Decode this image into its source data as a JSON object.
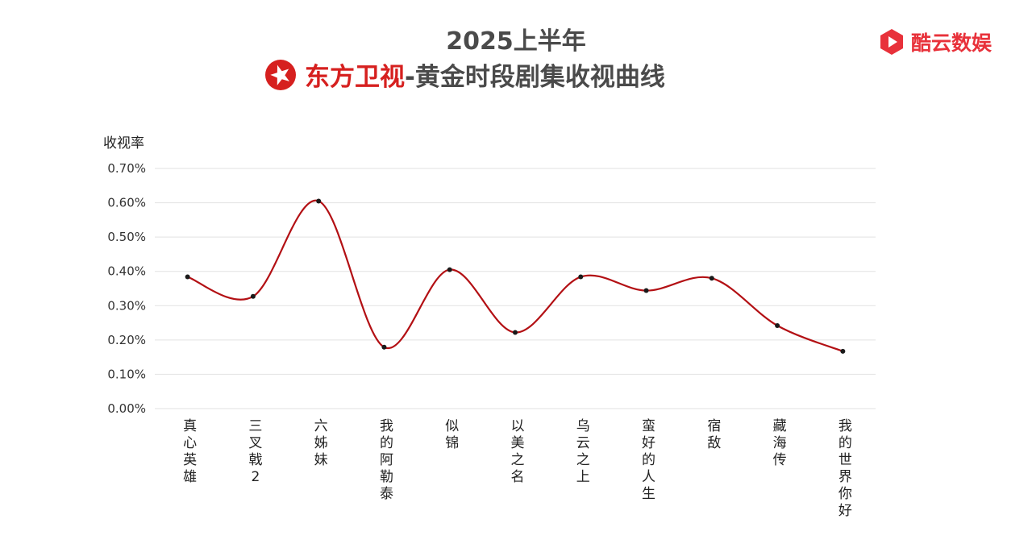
{
  "header": {
    "title_line1": "2025上半年",
    "channel_name": "东方卫视",
    "title_rest": "-黄金时段剧集收视曲线",
    "brand_name": "酷云数娱"
  },
  "colors": {
    "line": "#b31014",
    "marker": "#1a1a1a",
    "grid": "#e2e2e2",
    "channel_red": "#d6201f",
    "brand_red": "#e8313a",
    "title_gray": "#4a4a4a"
  },
  "icons": {
    "channel_logo": "dragon-tv-logo-icon",
    "brand_logo": "play-hexagon-icon"
  },
  "chart_data": {
    "type": "line",
    "title": "2025上半年 东方卫视-黄金时段剧集收视曲线",
    "xlabel": "",
    "ylabel": "收视率",
    "ylim": [
      0,
      0.7
    ],
    "yticks": [
      0,
      0.1,
      0.2,
      0.3,
      0.4,
      0.5,
      0.6,
      0.7
    ],
    "ytick_labels": [
      "0.00%",
      "0.10%",
      "0.20%",
      "0.30%",
      "0.40%",
      "0.50%",
      "0.60%",
      "0.70%"
    ],
    "grid": true,
    "smooth": true,
    "categories": [
      "真心英雄",
      "三叉戟2",
      "六姊妹",
      "我的阿勒泰",
      "似锦",
      "以美之名",
      "乌云之上",
      "蛮好的人生",
      "宿敌",
      "藏海传",
      "我的世界你好"
    ],
    "series": [
      {
        "values": [
          0.384,
          0.327,
          0.605,
          0.179,
          0.405,
          0.222,
          0.384,
          0.344,
          0.38,
          0.242,
          0.167
        ]
      }
    ]
  }
}
